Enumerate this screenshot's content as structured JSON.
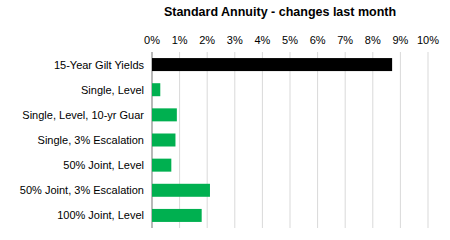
{
  "chart_data": {
    "type": "bar",
    "orientation": "horizontal",
    "title": "Standard Annuity - changes last month",
    "categories": [
      "15-Year Gilt Yields",
      "Single, Level",
      "Single, Level, 10-yr Guar",
      "Single, 3% Escalation",
      "50% Joint, Level",
      "50% Joint, 3% Escalation",
      "100% Joint, Level"
    ],
    "values": [
      8.7,
      0.3,
      0.9,
      0.85,
      0.7,
      2.1,
      1.8
    ],
    "colors": [
      "#000000",
      "#00b050",
      "#00b050",
      "#00b050",
      "#00b050",
      "#00b050",
      "#00b050"
    ],
    "xlim": [
      0,
      10
    ],
    "xticks": [
      {
        "value": 0,
        "label": "0%"
      },
      {
        "value": 1,
        "label": "1%"
      },
      {
        "value": 2,
        "label": "2%"
      },
      {
        "value": 3,
        "label": "3%"
      },
      {
        "value": 4,
        "label": "4%"
      },
      {
        "value": 5,
        "label": "5%"
      },
      {
        "value": 6,
        "label": "6%"
      },
      {
        "value": 7,
        "label": "7%"
      },
      {
        "value": 8,
        "label": "8%"
      },
      {
        "value": 9,
        "label": "9%"
      },
      {
        "value": 10,
        "label": "10%"
      }
    ],
    "grid": true
  }
}
